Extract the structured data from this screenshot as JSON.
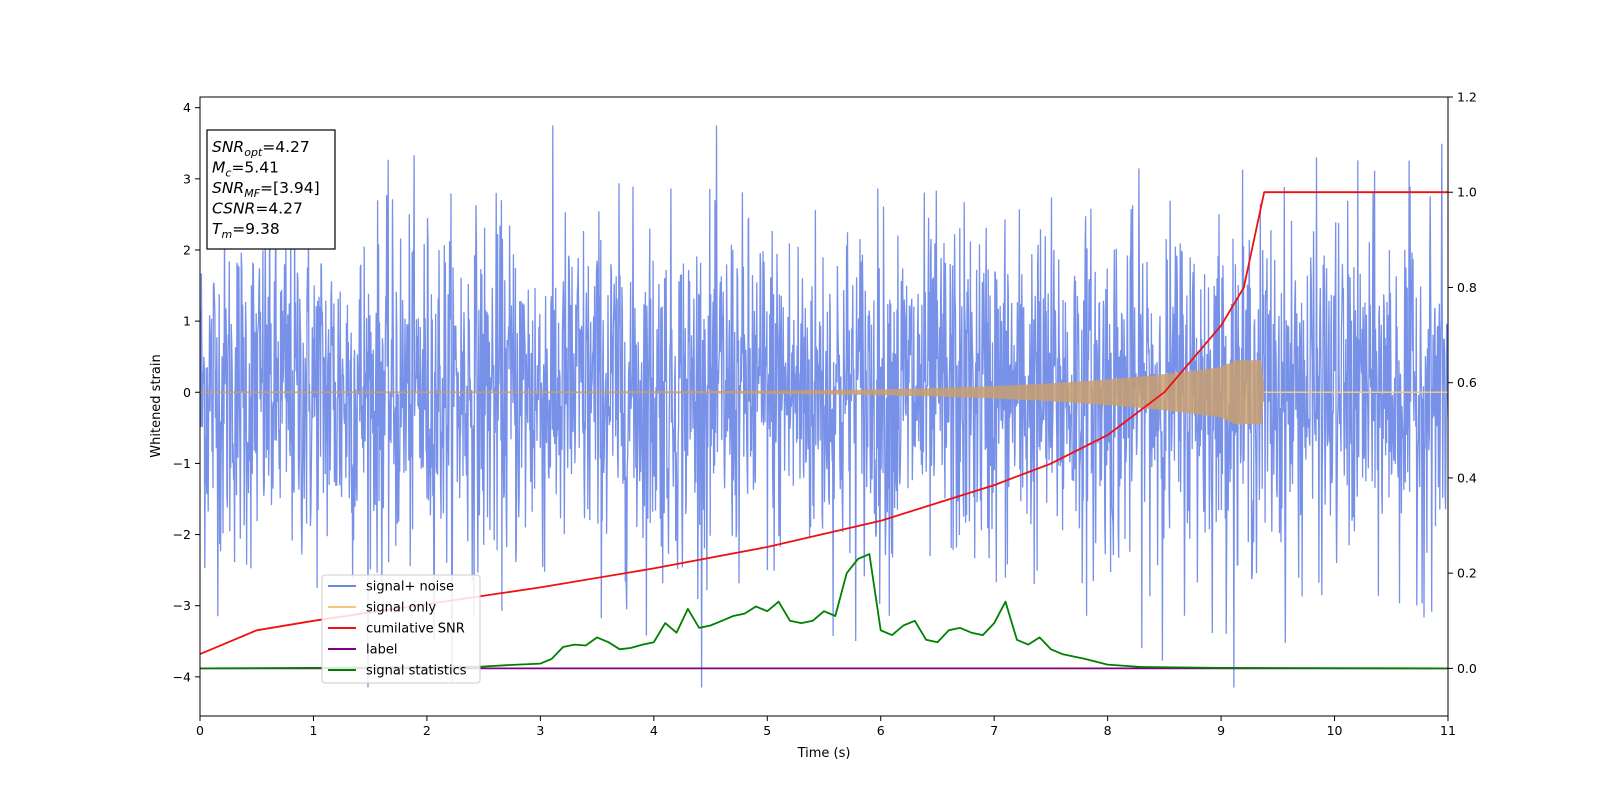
{
  "chart_data": {
    "type": "line",
    "xlabel": "Time (s)",
    "ylabel": "Whitened strain",
    "xlim": [
      0,
      11
    ],
    "ylim": [
      -4.55,
      4.15
    ],
    "y2lim": [
      -0.1,
      1.2
    ],
    "xticks": [
      0,
      1,
      2,
      3,
      4,
      5,
      6,
      7,
      8,
      9,
      10,
      11
    ],
    "yticks": [
      -4,
      -3,
      -2,
      -1,
      0,
      1,
      2,
      3,
      4
    ],
    "y2ticks": [
      0.0,
      0.2,
      0.4,
      0.6,
      0.8,
      1.0,
      1.2
    ],
    "grid": false,
    "legend_position": "lower-left",
    "info_box": {
      "lines": [
        {
          "main": "SNR",
          "sub": "opt",
          "value": "=4.27"
        },
        {
          "main": "M",
          "sub": "c",
          "value": "=5.41"
        },
        {
          "main": "SNR",
          "sub": "MF",
          "value": "=[3.94]"
        },
        {
          "main": "CSNR",
          "sub": "",
          "value": "=4.27"
        },
        {
          "main": "T",
          "sub": "m",
          "value": "=9.38"
        }
      ]
    },
    "series": [
      {
        "name": "signal+ noise",
        "color": "#6b87e6",
        "axis": "left",
        "description_values": {
          "mean": 0,
          "std": 1.2,
          "min": -4.15,
          "max": 3.75
        }
      },
      {
        "name": "signal only",
        "color": "#f5c87a",
        "axis": "left",
        "merger_time": 9.38,
        "peak_amplitude": 0.45
      },
      {
        "name": "cumilative SNR",
        "color": "#ee1111",
        "axis": "right",
        "x": [
          0,
          0.5,
          1,
          2,
          3,
          4,
          5,
          6,
          7,
          7.5,
          8,
          8.5,
          9,
          9.2,
          9.38,
          9.4,
          11
        ],
        "y": [
          0.03,
          0.08,
          0.1,
          0.135,
          0.17,
          0.21,
          0.255,
          0.31,
          0.385,
          0.43,
          0.49,
          0.58,
          0.72,
          0.8,
          1.0,
          1.0,
          1.0
        ]
      },
      {
        "name": "label",
        "color": "#800080",
        "axis": "right",
        "x": [
          0,
          11
        ],
        "y": [
          0.0,
          0.0
        ]
      },
      {
        "name": "signal statistics",
        "color": "#008000",
        "axis": "right",
        "x": [
          0,
          1,
          2,
          2.5,
          2.8,
          3.0,
          3.1,
          3.2,
          3.3,
          3.4,
          3.5,
          3.6,
          3.7,
          3.8,
          3.9,
          4.0,
          4.1,
          4.2,
          4.3,
          4.4,
          4.5,
          4.6,
          4.7,
          4.8,
          4.9,
          5.0,
          5.1,
          5.2,
          5.3,
          5.4,
          5.5,
          5.6,
          5.7,
          5.8,
          5.9,
          6.0,
          6.1,
          6.2,
          6.3,
          6.4,
          6.5,
          6.6,
          6.7,
          6.8,
          6.9,
          7.0,
          7.1,
          7.2,
          7.3,
          7.4,
          7.5,
          7.6,
          7.8,
          8.0,
          8.3,
          9,
          11
        ],
        "y": [
          0.0,
          0.001,
          0.003,
          0.004,
          0.008,
          0.01,
          0.02,
          0.045,
          0.05,
          0.048,
          0.065,
          0.055,
          0.04,
          0.043,
          0.05,
          0.055,
          0.095,
          0.075,
          0.125,
          0.085,
          0.09,
          0.1,
          0.11,
          0.115,
          0.13,
          0.12,
          0.14,
          0.1,
          0.095,
          0.1,
          0.12,
          0.11,
          0.2,
          0.23,
          0.24,
          0.08,
          0.07,
          0.09,
          0.1,
          0.06,
          0.055,
          0.08,
          0.085,
          0.075,
          0.07,
          0.095,
          0.14,
          0.06,
          0.05,
          0.065,
          0.04,
          0.03,
          0.02,
          0.008,
          0.003,
          0.001,
          0.0
        ]
      }
    ]
  }
}
